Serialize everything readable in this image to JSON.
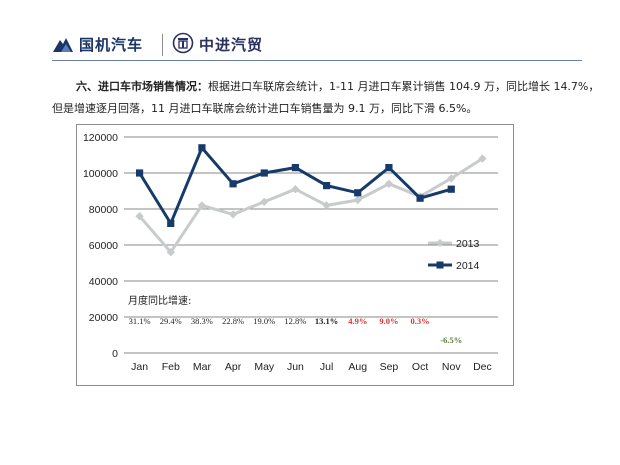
{
  "header": {
    "logo_left": "国机汽车",
    "logo_right": "中进汽贸"
  },
  "paragraph": {
    "section_title": "六、进口车市场销售情况：",
    "line1_rest": "根据进口车联席会统计，1-11 月进口车累计销售 104.9 万，同比增长 14.7%，",
    "line2": "但是增速逐月回落，11 月进口车联席会统计进口车销售量为 9.1 万，同比下滑 6.5%。"
  },
  "chart_data": {
    "type": "line",
    "categories": [
      "Jan",
      "Feb",
      "Mar",
      "Apr",
      "May",
      "Jun",
      "Jul",
      "Aug",
      "Sep",
      "Oct",
      "Nov",
      "Dec"
    ],
    "series": [
      {
        "name": "2013",
        "color": "#c8cbcc",
        "marker": "diamond",
        "values": [
          76000,
          56000,
          82000,
          77000,
          84000,
          91000,
          82000,
          85000,
          94000,
          87000,
          97000,
          108000
        ]
      },
      {
        "name": "2014",
        "color": "#163a6a",
        "marker": "square",
        "values": [
          100000,
          72000,
          114000,
          94000,
          100000,
          103000,
          93000,
          89000,
          103000,
          86000,
          91000,
          null
        ]
      }
    ],
    "ylim": [
      0,
      120000
    ],
    "yticks": [
      "0",
      "20000",
      "40000",
      "60000",
      "80000",
      "100000",
      "120000"
    ],
    "grid": true,
    "legend_position": "right",
    "annotation_title": "月度同比增速:",
    "growth_labels": [
      {
        "month": "Jan",
        "text": "31.1%",
        "color": "#222222",
        "bold": false
      },
      {
        "month": "Feb",
        "text": "29.4%",
        "color": "#222222",
        "bold": false
      },
      {
        "month": "Mar",
        "text": "38.3%",
        "color": "#222222",
        "bold": false
      },
      {
        "month": "Apr",
        "text": "22.8%",
        "color": "#222222",
        "bold": false
      },
      {
        "month": "May",
        "text": "19.0%",
        "color": "#222222",
        "bold": false
      },
      {
        "month": "Jun",
        "text": "12.8%",
        "color": "#222222",
        "bold": false
      },
      {
        "month": "Jul",
        "text": "13.1%",
        "color": "#222222",
        "bold": true
      },
      {
        "month": "Aug",
        "text": "4.9%",
        "color": "#e03030",
        "bold": true
      },
      {
        "month": "Sep",
        "text": "9.0%",
        "color": "#e03030",
        "bold": true
      },
      {
        "month": "Oct",
        "text": "0.3%",
        "color": "#e03030",
        "bold": true
      },
      {
        "month": "Nov",
        "text": "-6.5%",
        "color": "#5a7a3a",
        "bold": true
      }
    ]
  }
}
